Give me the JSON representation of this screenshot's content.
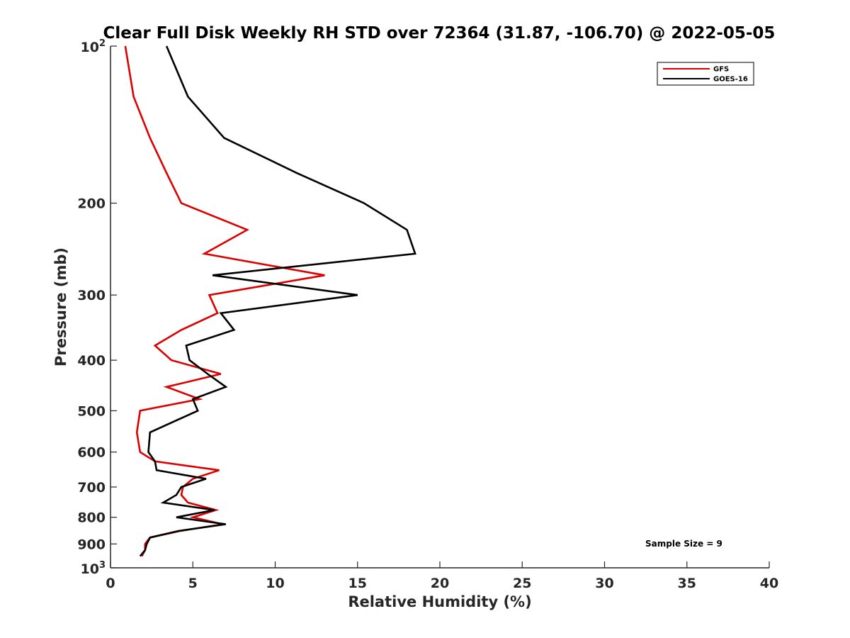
{
  "chart_data": {
    "type": "line",
    "title": "Clear Full Disk Weekly RH STD over 72364 (31.87, -106.70) @ 2022-05-05",
    "xlabel": "Relative Humidity (%)",
    "ylabel": "Pressure (mb)",
    "xlim": [
      0,
      40
    ],
    "ylim": [
      100,
      1000
    ],
    "y_scale": "log",
    "y_reversed": true,
    "grid": false,
    "legend_position": "top-right",
    "x_ticks": [
      "0",
      "5",
      "10",
      "15",
      "20",
      "25",
      "30",
      "35",
      "40"
    ],
    "y_ticks": [
      {
        "value": 100,
        "base": "10",
        "exp": "2"
      },
      {
        "value": 200,
        "label": "200"
      },
      {
        "value": 300,
        "label": "300"
      },
      {
        "value": 400,
        "label": "400"
      },
      {
        "value": 500,
        "label": "500"
      },
      {
        "value": 600,
        "label": "600"
      },
      {
        "value": 700,
        "label": "700"
      },
      {
        "value": 800,
        "label": "800"
      },
      {
        "value": 900,
        "label": "900"
      },
      {
        "value": 1000,
        "base": "10",
        "exp": "3"
      }
    ],
    "annotation": "Sample Size = 9",
    "series": [
      {
        "name": "GFS",
        "color": "#dd0000",
        "points": [
          [
            0.9,
            100
          ],
          [
            1.4,
            125
          ],
          [
            2.4,
            150
          ],
          [
            3.4,
            175
          ],
          [
            4.3,
            200
          ],
          [
            8.3,
            225
          ],
          [
            5.7,
            250
          ],
          [
            13.0,
            275
          ],
          [
            6.0,
            300
          ],
          [
            6.5,
            325
          ],
          [
            4.3,
            350
          ],
          [
            2.7,
            375
          ],
          [
            3.7,
            400
          ],
          [
            6.7,
            425
          ],
          [
            3.4,
            450
          ],
          [
            5.4,
            475
          ],
          [
            1.8,
            500
          ],
          [
            1.6,
            550
          ],
          [
            1.8,
            600
          ],
          [
            2.7,
            625
          ],
          [
            6.6,
            650
          ],
          [
            5.0,
            675
          ],
          [
            4.4,
            700
          ],
          [
            4.3,
            725
          ],
          [
            4.7,
            750
          ],
          [
            6.4,
            775
          ],
          [
            5.0,
            800
          ],
          [
            6.8,
            825
          ],
          [
            4.2,
            850
          ],
          [
            2.4,
            875
          ],
          [
            2.1,
            900
          ],
          [
            2.1,
            925
          ],
          [
            1.9,
            950
          ]
        ]
      },
      {
        "name": "GOES-16",
        "color": "#000000",
        "points": [
          [
            3.4,
            100
          ],
          [
            4.7,
            125
          ],
          [
            6.9,
            150
          ],
          [
            11.3,
            175
          ],
          [
            15.4,
            200
          ],
          [
            18.0,
            225
          ],
          [
            18.5,
            250
          ],
          [
            6.2,
            275
          ],
          [
            15.0,
            300
          ],
          [
            6.7,
            325
          ],
          [
            7.5,
            350
          ],
          [
            4.6,
            375
          ],
          [
            4.8,
            400
          ],
          [
            5.9,
            425
          ],
          [
            7.0,
            450
          ],
          [
            5.0,
            475
          ],
          [
            5.3,
            500
          ],
          [
            2.4,
            550
          ],
          [
            2.3,
            600
          ],
          [
            2.7,
            625
          ],
          [
            2.8,
            650
          ],
          [
            5.8,
            675
          ],
          [
            4.3,
            700
          ],
          [
            4.0,
            725
          ],
          [
            3.2,
            750
          ],
          [
            6.3,
            775
          ],
          [
            4.0,
            800
          ],
          [
            7.0,
            825
          ],
          [
            4.1,
            850
          ],
          [
            2.4,
            875
          ],
          [
            2.2,
            900
          ],
          [
            2.1,
            925
          ],
          [
            1.8,
            950
          ]
        ]
      }
    ]
  }
}
